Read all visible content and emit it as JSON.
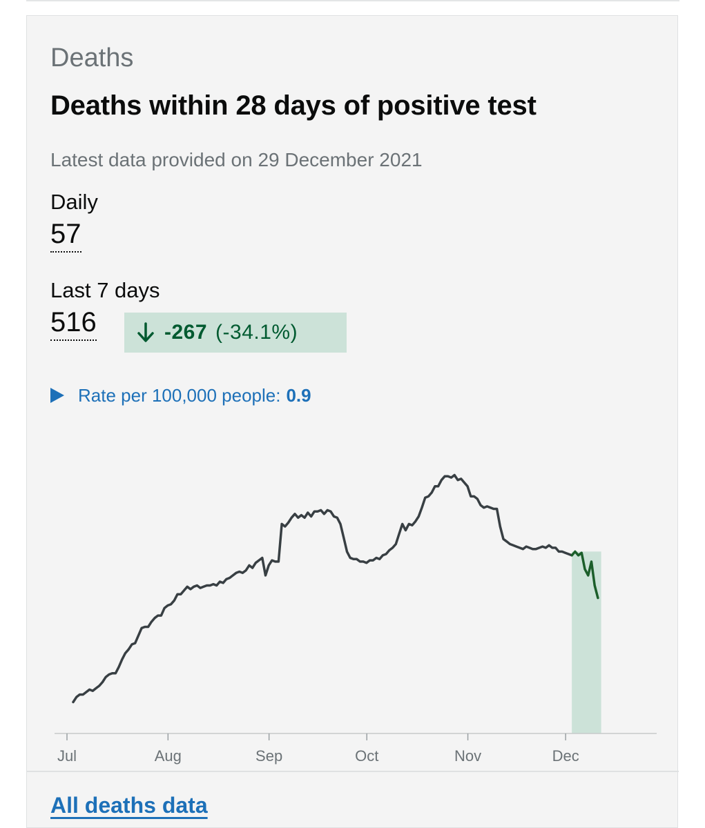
{
  "card": {
    "kicker": "Deaths",
    "title": "Deaths within 28 days of positive test",
    "updated": "Latest data provided on 29 December 2021"
  },
  "metrics": {
    "daily_label": "Daily",
    "daily_value": "57",
    "week_label": "Last 7 days",
    "week_value": "516",
    "change_value": "-267",
    "change_percent": "(-34.1%)",
    "change_direction_icon": "arrow-down-icon"
  },
  "rate": {
    "label": "Rate per 100,000 people:",
    "value": "0.9",
    "toggle_icon": "triangle-right-icon"
  },
  "colors": {
    "line": "#383f43",
    "highlight_line": "#1b5e2a",
    "highlight_fill": "#cce2d8",
    "link": "#1d70b8",
    "badge_text": "#005a30"
  },
  "chart_data": {
    "type": "line",
    "x_tick_labels": [
      "Jul",
      "Aug",
      "Sep",
      "Oct",
      "Nov",
      "Dec"
    ],
    "x_ticks_day_index": [
      0,
      31,
      62,
      92,
      123,
      153
    ],
    "y_axis_labels_shown": false,
    "grid": false,
    "highlight": "last 7 days shaded",
    "series": [
      {
        "values": [
          10.5,
          10.9,
          11.1,
          11.1,
          11.3,
          11.5,
          11.4,
          11.6,
          11.8,
          12.1,
          12.5,
          12.7,
          12.8,
          12.8,
          13.3,
          13.9,
          14.4,
          14.7,
          15.1,
          15.2,
          15.8,
          16.4,
          16.5,
          16.5,
          16.9,
          17.2,
          17.4,
          17.4,
          18.0,
          18.2,
          18.3,
          18.6,
          19.1,
          19.1,
          19.4,
          19.7,
          19.5,
          19.7,
          19.8,
          19.6,
          19.7,
          19.8,
          19.8,
          19.9,
          19.8,
          20.1,
          20.0,
          20.3,
          20.4,
          20.6,
          20.8,
          20.9,
          20.8,
          21.0,
          21.4,
          21.2,
          21.6,
          21.8,
          22.0,
          20.6,
          21.4,
          21.8,
          21.7,
          21.7,
          24.7,
          24.5,
          24.8,
          25.2,
          25.5,
          25.2,
          25.4,
          25.2,
          25.6,
          25.3,
          25.7,
          25.7,
          25.8,
          25.5,
          25.8,
          25.7,
          25.3,
          25.2,
          24.7,
          23.6,
          22.5,
          22.0,
          21.9,
          21.9,
          21.7,
          21.7,
          21.6,
          21.8,
          21.8,
          22.0,
          21.9,
          22.2,
          22.3,
          22.6,
          22.8,
          23.1,
          23.9,
          24.7,
          24.2,
          24.7,
          24.6,
          24.9,
          25.3,
          26.0,
          26.8,
          26.9,
          27.2,
          27.7,
          27.7,
          28.2,
          28.5,
          28.5,
          28.4,
          28.6,
          28.2,
          28.3,
          28.0,
          27.7,
          26.9,
          26.9,
          26.7,
          26.2,
          26.0,
          26.1,
          26.0,
          25.9,
          25.9,
          24.5,
          23.5,
          23.3,
          23.1,
          23.0,
          22.9,
          22.8,
          22.7,
          22.9,
          22.8,
          22.7,
          22.7,
          22.8,
          22.9,
          22.8,
          23.0,
          22.8,
          22.8,
          22.5,
          22.5,
          22.4,
          22.3,
          22.2
        ],
        "highlight_values": [
          22.2,
          22.5,
          22.2,
          22.4,
          21.1,
          20.6,
          21.7,
          19.8,
          18.8
        ]
      }
    ]
  },
  "footer": {
    "link_label": "All deaths data"
  }
}
